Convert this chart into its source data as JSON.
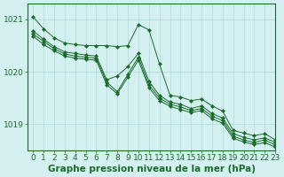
{
  "title": "Graphe pression niveau de la mer (hPa)",
  "bg_color": "#d4f0f0",
  "grid_color": "#b0d8d8",
  "line_color": "#1a6b2a",
  "ylim": [
    1018.5,
    1021.3
  ],
  "xlim": [
    -0.5,
    23
  ],
  "yticks": [
    1019,
    1020,
    1021
  ],
  "xticks": [
    0,
    1,
    2,
    3,
    4,
    5,
    6,
    7,
    8,
    9,
    10,
    11,
    12,
    13,
    14,
    15,
    16,
    17,
    18,
    19,
    20,
    21,
    22,
    23
  ],
  "series": [
    [
      1021.05,
      1020.82,
      1020.65,
      1020.55,
      1020.52,
      1020.5,
      1020.5,
      1020.5,
      1020.48,
      1020.5,
      1020.9,
      1020.8,
      1020.15,
      1019.55,
      1019.52,
      1019.45,
      1019.48,
      1019.35,
      1019.25,
      1018.88,
      1018.83,
      1018.78,
      1018.82,
      1018.7
    ],
    [
      1020.78,
      1020.62,
      1020.48,
      1020.38,
      1020.35,
      1020.32,
      1020.3,
      1019.85,
      1019.92,
      1020.1,
      1020.35,
      1019.82,
      1019.55,
      1019.42,
      1019.38,
      1019.3,
      1019.35,
      1019.2,
      1019.12,
      1018.82,
      1018.75,
      1018.7,
      1018.74,
      1018.65
    ],
    [
      1020.72,
      1020.58,
      1020.44,
      1020.34,
      1020.3,
      1020.28,
      1020.26,
      1019.8,
      1019.62,
      1019.95,
      1020.28,
      1019.75,
      1019.5,
      1019.38,
      1019.33,
      1019.26,
      1019.3,
      1019.15,
      1019.07,
      1018.77,
      1018.7,
      1018.65,
      1018.7,
      1018.6
    ],
    [
      1020.68,
      1020.52,
      1020.4,
      1020.3,
      1020.26,
      1020.24,
      1020.22,
      1019.75,
      1019.58,
      1019.9,
      1020.22,
      1019.7,
      1019.45,
      1019.34,
      1019.28,
      1019.22,
      1019.26,
      1019.1,
      1019.02,
      1018.73,
      1018.66,
      1018.61,
      1018.65,
      1018.56
    ]
  ],
  "tick_fontsize": 6.5,
  "title_fontsize": 7.5
}
